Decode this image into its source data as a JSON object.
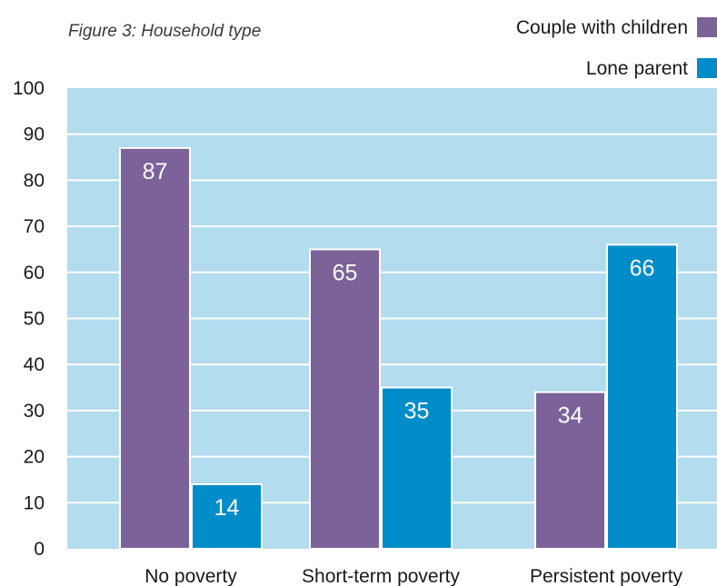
{
  "chart_data": {
    "type": "bar",
    "title": "Figure 3: Household type",
    "categories": [
      "No poverty",
      "Short-term poverty",
      "Persistent poverty"
    ],
    "series": [
      {
        "name": "Couple with children",
        "values": [
          87,
          65,
          34
        ],
        "color": "#7b6299"
      },
      {
        "name": "Lone parent",
        "values": [
          14,
          35,
          66
        ],
        "color": "#008cc9"
      }
    ],
    "ylim": [
      0,
      100
    ],
    "yticks": [
      0,
      10,
      20,
      30,
      40,
      50,
      60,
      70,
      80,
      90,
      100
    ],
    "grid": true,
    "legend_position": "top-right",
    "plot_background": "#b3dcee",
    "grid_color": "#ffffff",
    "xlabel": "",
    "ylabel": ""
  }
}
